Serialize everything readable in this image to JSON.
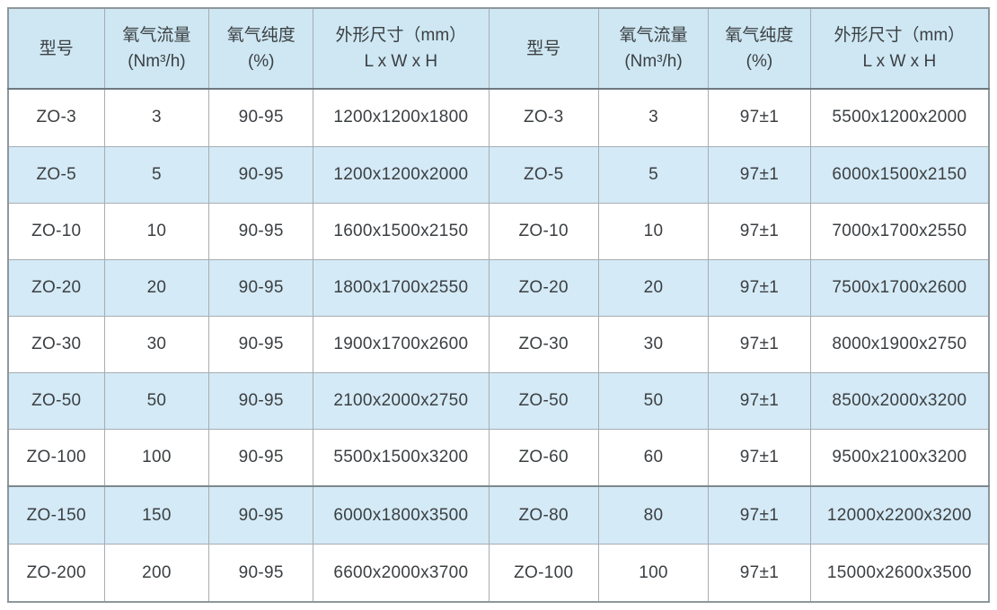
{
  "table": {
    "columns": [
      {
        "key": "model-left",
        "lines": [
          "型号"
        ]
      },
      {
        "key": "oxygen-flow-left",
        "lines": [
          "氧气流量",
          "(Nm³/h)"
        ]
      },
      {
        "key": "oxygen-purity-left",
        "lines": [
          "氧气纯度",
          "(%)"
        ]
      },
      {
        "key": "dimensions-left",
        "lines": [
          "外形尺寸（mm）",
          "L x W x H"
        ]
      },
      {
        "key": "model-right",
        "lines": [
          "型号"
        ]
      },
      {
        "key": "oxygen-flow-right",
        "lines": [
          "氧气流量",
          "(Nm³/h)"
        ]
      },
      {
        "key": "oxygen-purity-right",
        "lines": [
          "氧气纯度",
          "(%)"
        ]
      },
      {
        "key": "dimensions-right",
        "lines": [
          "外形尺寸（mm）",
          "L x W x H"
        ]
      }
    ],
    "rows": [
      [
        "ZO-3",
        "3",
        "90-95",
        "1200x1200x1800",
        "ZO-3",
        "3",
        "97±1",
        "5500x1200x2000"
      ],
      [
        "ZO-5",
        "5",
        "90-95",
        "1200x1200x2000",
        "ZO-5",
        "5",
        "97±1",
        "6000x1500x2150"
      ],
      [
        "ZO-10",
        "10",
        "90-95",
        "1600x1500x2150",
        "ZO-10",
        "10",
        "97±1",
        "7000x1700x2550"
      ],
      [
        "ZO-20",
        "20",
        "90-95",
        "1800x1700x2550",
        "ZO-20",
        "20",
        "97±1",
        "7500x1700x2600"
      ],
      [
        "ZO-30",
        "30",
        "90-95",
        "1900x1700x2600",
        "ZO-30",
        "30",
        "97±1",
        "8000x1900x2750"
      ],
      [
        "ZO-50",
        "50",
        "90-95",
        "2100x2000x2750",
        "ZO-50",
        "50",
        "97±1",
        "8500x2000x3200"
      ],
      [
        "ZO-100",
        "100",
        "90-95",
        "5500x1500x3200",
        "ZO-60",
        "60",
        "97±1",
        "9500x2100x3200"
      ],
      [
        "ZO-150",
        "150",
        "90-95",
        "6000x1800x3500",
        "ZO-80",
        "80",
        "97±1",
        "12000x2200x3200"
      ],
      [
        "ZO-200",
        "200",
        "90-95",
        "6600x2000x3700",
        "ZO-100",
        "100",
        "97±1",
        "15000x2600x3500"
      ]
    ]
  },
  "colors": {
    "header_background": "#cee7f3",
    "stripe_background": "#d4eaf6",
    "row_background": "#ffffff",
    "text": "#3b3f42",
    "inner_border": "#a6adb2",
    "outer_border": "#8d979c",
    "header_underline": "#6e797f"
  }
}
